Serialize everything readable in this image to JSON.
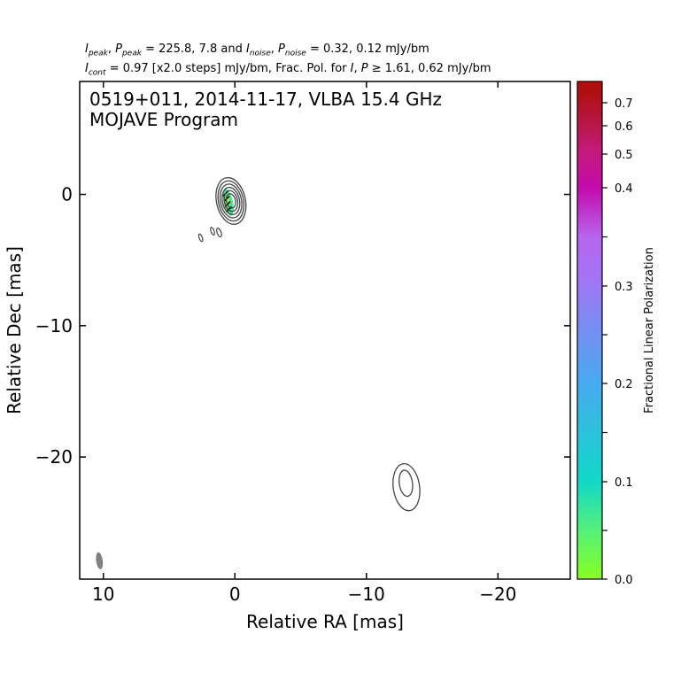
{
  "header": {
    "line1": {
      "i_label": "I",
      "i_sub": "peak",
      "p_label": "P",
      "p_sub": "peak",
      "values": "= 225.8, 7.8 and",
      "in_label": "I",
      "in_sub": "noise",
      "pn_label": "P",
      "pn_sub": "noise",
      "values2": "= 0.32, 0.12 mJy/bm"
    },
    "line2": {
      "i_label": "I",
      "i_sub": "cont",
      "text1": "= 0.97 [x2.0 steps] mJy/bm, Frac. Pol. for",
      "i2": "I",
      "p2": "P",
      "text2": "≥ 1.61, 0.62 mJy/bm"
    }
  },
  "colors": {
    "contour": "#444444",
    "beam": "#808080",
    "cbar_bottom": "#88ff22",
    "cbar_top": "#b00f0f"
  },
  "chart_data": {
    "type": "contour",
    "title_lines": [
      "0519+011, 2014-11-17, VLBA 15.4 GHz",
      "MOJAVE Program"
    ],
    "xlabel": "Relative RA [mas]",
    "ylabel": "Relative Dec [mas]",
    "xlim": [
      11.8,
      -25.5
    ],
    "ylim": [
      -29.3,
      8.6
    ],
    "xticks": [
      10,
      0,
      -10,
      -20
    ],
    "yticks": [
      0,
      -10,
      -20
    ],
    "tick_labels_x": [
      "10",
      "0",
      "−10",
      "−20"
    ],
    "tick_labels_y": [
      "0",
      "−10",
      "−20"
    ],
    "core": {
      "center": [
        0.3,
        -0.5
      ],
      "contours": [
        {
          "rx": 1.1,
          "ry": 1.8
        },
        {
          "rx": 0.95,
          "ry": 1.55
        },
        {
          "rx": 0.8,
          "ry": 1.3
        },
        {
          "rx": 0.65,
          "ry": 1.05
        },
        {
          "rx": 0.5,
          "ry": 0.8
        },
        {
          "rx": 0.35,
          "ry": 0.55
        }
      ]
    },
    "jet_component": {
      "center": [
        -13.0,
        -22.0
      ],
      "contours": [
        {
          "rx": 1.0,
          "ry": 1.8
        },
        {
          "rx": 0.5,
          "ry": 1.0
        }
      ]
    },
    "small_islands": [
      {
        "x": 1.2,
        "y": -2.9,
        "rx": 0.15,
        "ry": 0.35
      },
      {
        "x": 1.7,
        "y": -2.8,
        "rx": 0.12,
        "ry": 0.3
      },
      {
        "x": 2.6,
        "y": -3.3,
        "rx": 0.12,
        "ry": 0.3
      }
    ],
    "polarization_patch": {
      "center": [
        0.5,
        -0.6
      ],
      "rx": 0.35,
      "ry": 1.05
    },
    "beam": {
      "x": 10.3,
      "y": -27.9,
      "rx": 0.25,
      "ry": 0.65
    },
    "colorbar": {
      "label": "Fractional Linear Polarization",
      "min": 0.0,
      "max": 0.75,
      "ticks": [
        0.0,
        0.1,
        0.2,
        0.3,
        0.4,
        0.5,
        0.6,
        0.7
      ],
      "tick_labels": [
        "0.0",
        "0.1",
        "0.2",
        "0.3",
        "0.4",
        "0.5",
        "0.6",
        "0.7"
      ],
      "stops": [
        {
          "v": 0.0,
          "c": "#88ff22"
        },
        {
          "v": 0.05,
          "c": "#55f07a"
        },
        {
          "v": 0.1,
          "c": "#11d8c8"
        },
        {
          "v": 0.2,
          "c": "#48aaf0"
        },
        {
          "v": 0.3,
          "c": "#9d78f5"
        },
        {
          "v": 0.35,
          "c": "#b865ef"
        },
        {
          "v": 0.4,
          "c": "#c40aab"
        },
        {
          "v": 0.5,
          "c": "#c41a80"
        },
        {
          "v": 0.6,
          "c": "#b8184a"
        },
        {
          "v": 0.75,
          "c": "#b00f0f"
        }
      ]
    }
  }
}
